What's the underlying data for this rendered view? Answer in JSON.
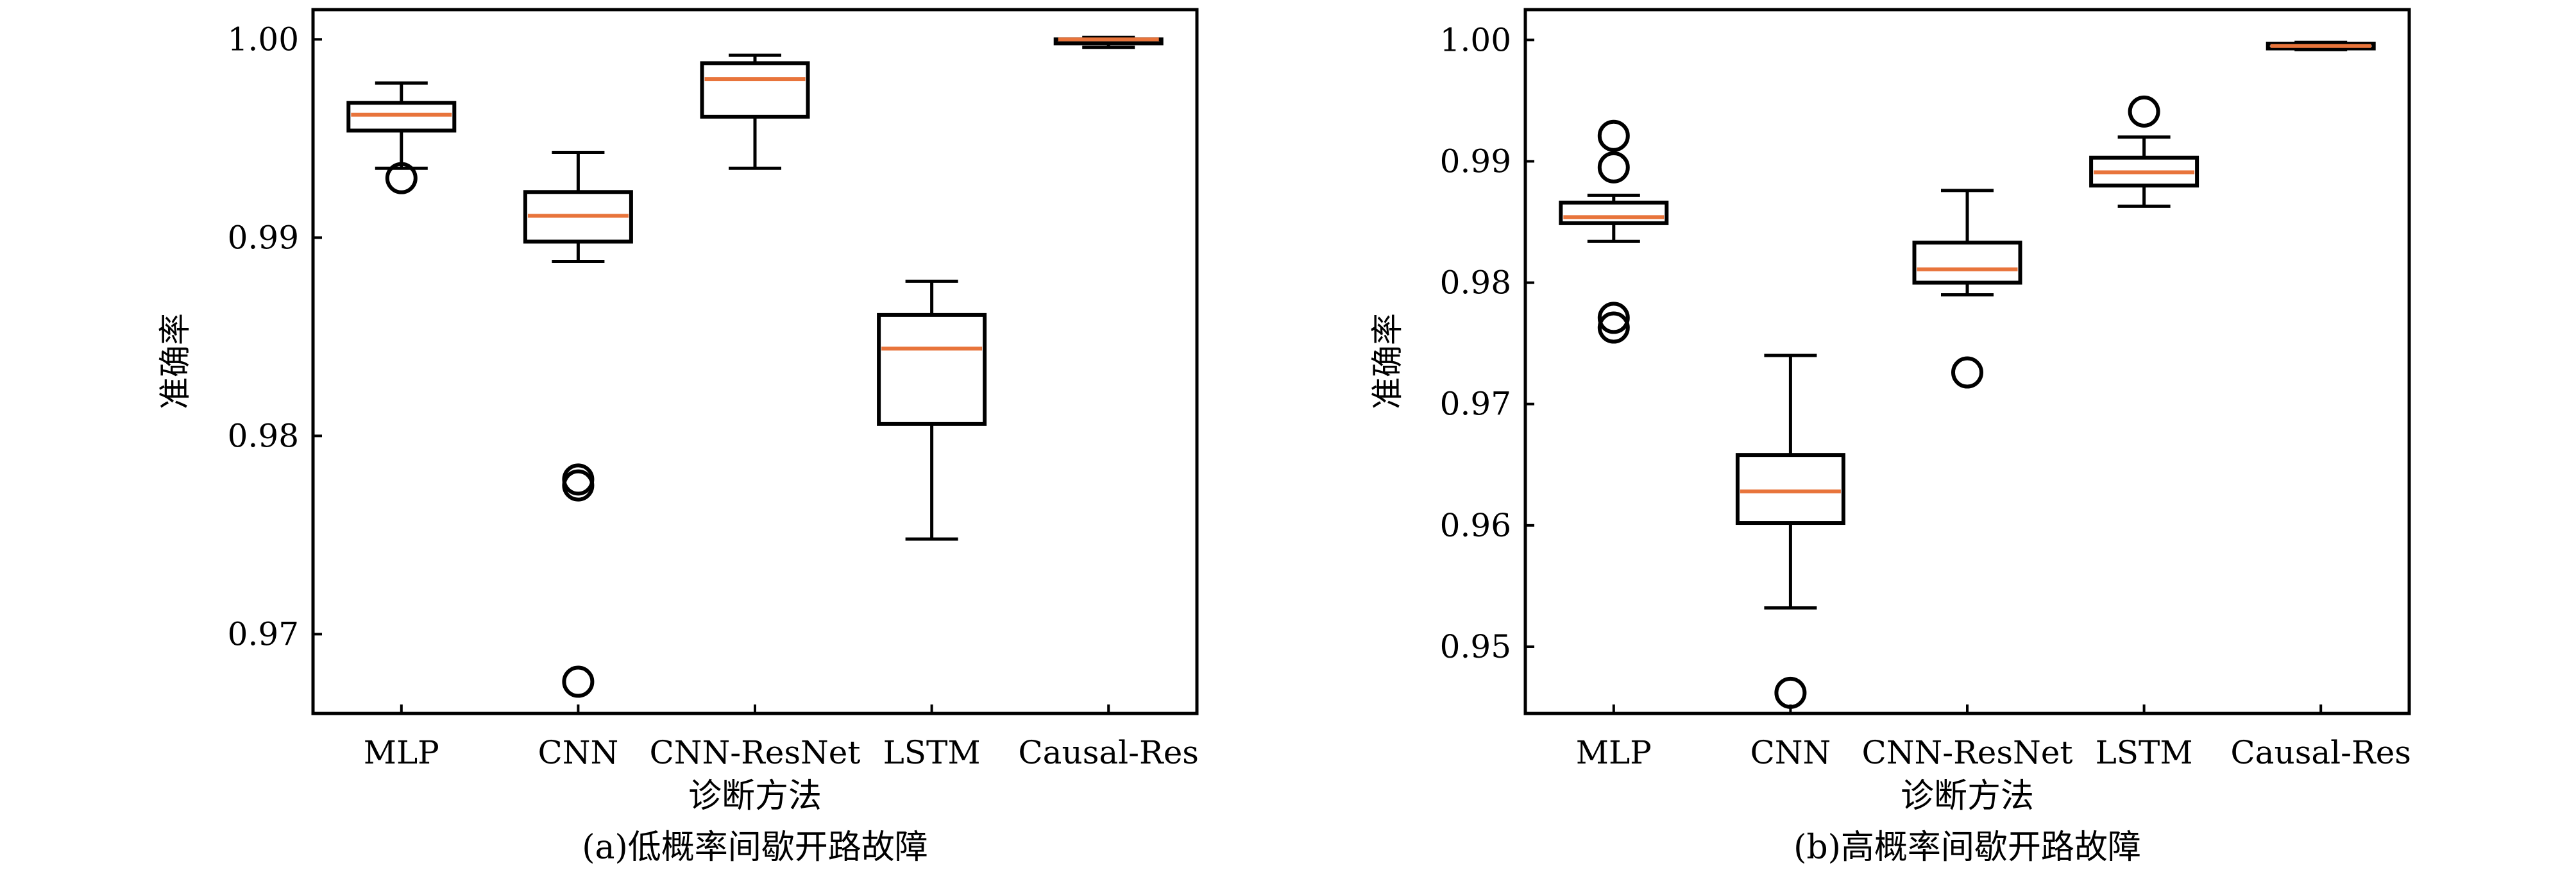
{
  "colors": {
    "box": "#000000",
    "median": "#e8743b",
    "background": "#ffffff"
  },
  "chart_data": [
    {
      "type": "boxplot",
      "caption": "(a)低概率间歇开路故障",
      "xlabel": "诊断方法",
      "ylabel": "准确率",
      "ylim": [
        0.966,
        1.0015
      ],
      "yticks": [
        0.97,
        0.98,
        0.99,
        1.0
      ],
      "ytick_labels": [
        "0.97",
        "0.98",
        "0.99",
        "1.00"
      ],
      "grid": false,
      "categories": [
        "MLP",
        "CNN",
        "CNN-ResNet",
        "LSTM",
        "Causal-Res"
      ],
      "boxes": [
        {
          "name": "MLP",
          "whisker_low": 0.9935,
          "q1": 0.9954,
          "median": 0.9962,
          "q3": 0.9968,
          "whisker_high": 0.9978,
          "outliers": [
            0.993
          ]
        },
        {
          "name": "CNN",
          "whisker_low": 0.9888,
          "q1": 0.9898,
          "median": 0.9911,
          "q3": 0.9923,
          "whisker_high": 0.9943,
          "outliers": [
            0.9778,
            0.9775,
            0.9676
          ]
        },
        {
          "name": "CNN-ResNet",
          "whisker_low": 0.9935,
          "q1": 0.9961,
          "median": 0.998,
          "q3": 0.9988,
          "whisker_high": 0.9992,
          "outliers": []
        },
        {
          "name": "LSTM",
          "whisker_low": 0.9748,
          "q1": 0.9806,
          "median": 0.9844,
          "q3": 0.9861,
          "whisker_high": 0.9878,
          "outliers": []
        },
        {
          "name": "Causal-Res",
          "whisker_low": 0.9996,
          "q1": 0.9998,
          "median": 1.0,
          "q3": 1.0,
          "whisker_high": 1.0001,
          "outliers": []
        }
      ]
    },
    {
      "type": "boxplot",
      "caption": "(b)高概率间歇开路故障",
      "xlabel": "诊断方法",
      "ylabel": "准确率",
      "ylim": [
        0.9445,
        1.0025
      ],
      "yticks": [
        0.95,
        0.96,
        0.97,
        0.98,
        0.99,
        1.0
      ],
      "ytick_labels": [
        "0.95",
        "0.96",
        "0.97",
        "0.98",
        "0.99",
        "1.00"
      ],
      "grid": false,
      "categories": [
        "MLP",
        "CNN",
        "CNN-ResNet",
        "LSTM",
        "Causal-Res"
      ],
      "boxes": [
        {
          "name": "MLP",
          "whisker_low": 0.9834,
          "q1": 0.9849,
          "median": 0.9854,
          "q3": 0.9866,
          "whisker_high": 0.9872,
          "outliers": [
            0.9921,
            0.9895,
            0.9771,
            0.9763
          ]
        },
        {
          "name": "CNN",
          "whisker_low": 0.9532,
          "q1": 0.9602,
          "median": 0.9628,
          "q3": 0.9658,
          "whisker_high": 0.974,
          "outliers": [
            0.9462
          ]
        },
        {
          "name": "CNN-ResNet",
          "whisker_low": 0.979,
          "q1": 0.98,
          "median": 0.9811,
          "q3": 0.9833,
          "whisker_high": 0.9876,
          "outliers": [
            0.9726
          ]
        },
        {
          "name": "LSTM",
          "whisker_low": 0.9863,
          "q1": 0.988,
          "median": 0.9891,
          "q3": 0.9903,
          "whisker_high": 0.992,
          "outliers": [
            0.9941
          ]
        },
        {
          "name": "Causal-Res",
          "whisker_low": 0.9992,
          "q1": 0.9993,
          "median": 0.9995,
          "q3": 0.9997,
          "whisker_high": 0.9998,
          "outliers": []
        }
      ]
    }
  ]
}
